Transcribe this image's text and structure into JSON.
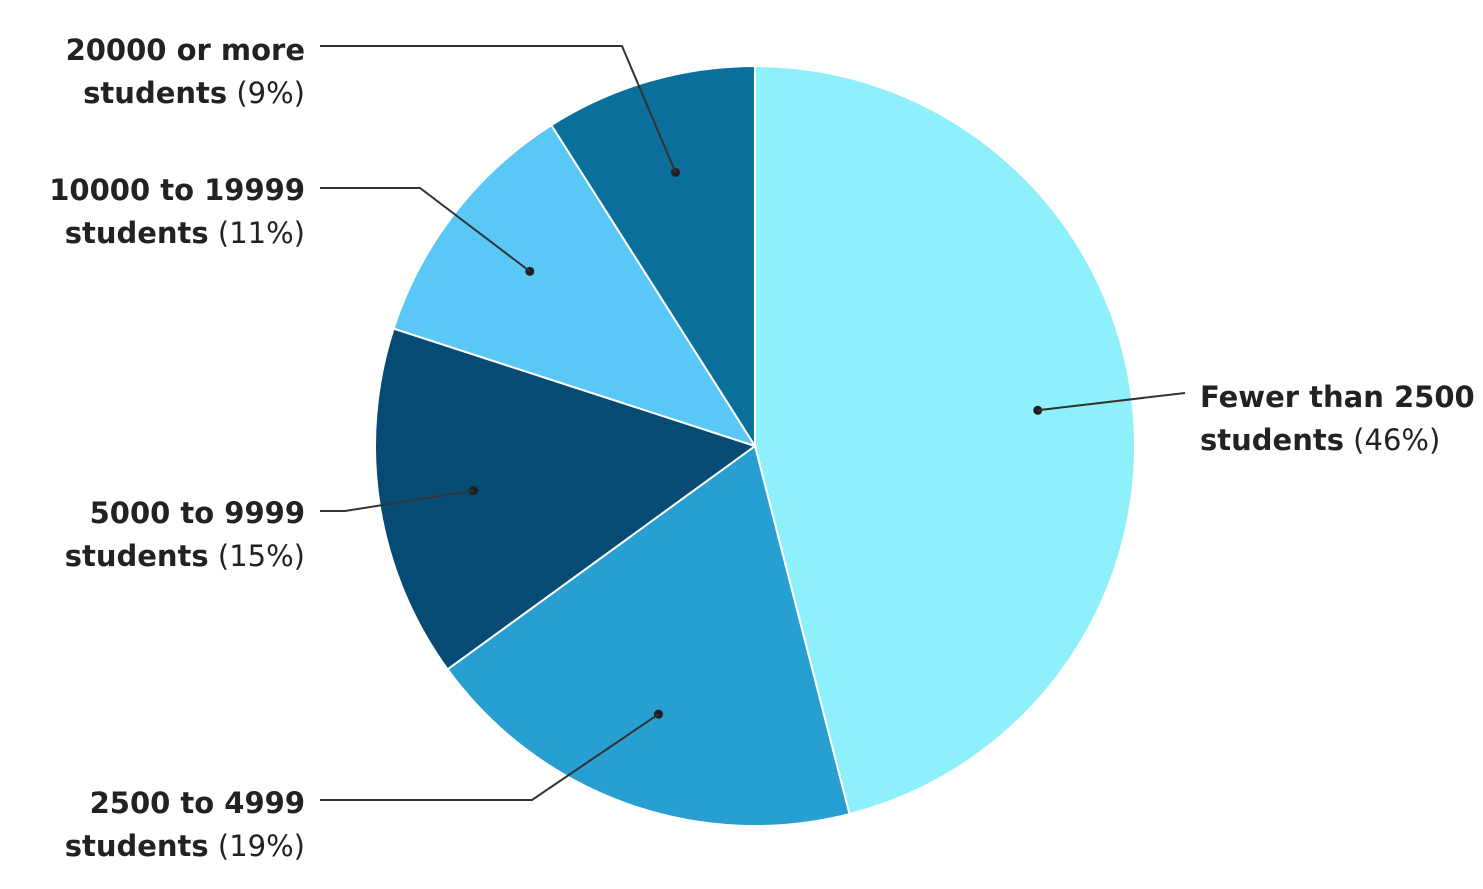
{
  "chart_data": {
    "type": "pie",
    "title": "",
    "start_angle_deg": 0,
    "direction": "clockwise",
    "slices": [
      {
        "name": "Fewer than 2500 students",
        "line1": "Fewer than 2500",
        "line2_bold": "students",
        "line2_pct": " (46%)",
        "value": 46,
        "color": "#8ef0fb"
      },
      {
        "name": "2500 to 4999 students",
        "line1": "2500 to 4999",
        "line2_bold": "students",
        "line2_pct": " (19%)",
        "value": 19,
        "color": "#279fd0"
      },
      {
        "name": "5000 to 9999 students",
        "line1": "5000 to 9999",
        "line2_bold": "students",
        "line2_pct": " (15%)",
        "value": 15,
        "color": "#064b74"
      },
      {
        "name": "10000 to 19999 students",
        "line1": "10000 to 19999",
        "line2_bold": "students",
        "line2_pct": " (11%)",
        "value": 11,
        "color": "#5ac8f6"
      },
      {
        "name": "20000 or more students",
        "line1": "20000 or more",
        "line2_bold": "students",
        "line2_pct": " (9%)",
        "value": 9,
        "color": "#0a6f9b"
      }
    ]
  }
}
